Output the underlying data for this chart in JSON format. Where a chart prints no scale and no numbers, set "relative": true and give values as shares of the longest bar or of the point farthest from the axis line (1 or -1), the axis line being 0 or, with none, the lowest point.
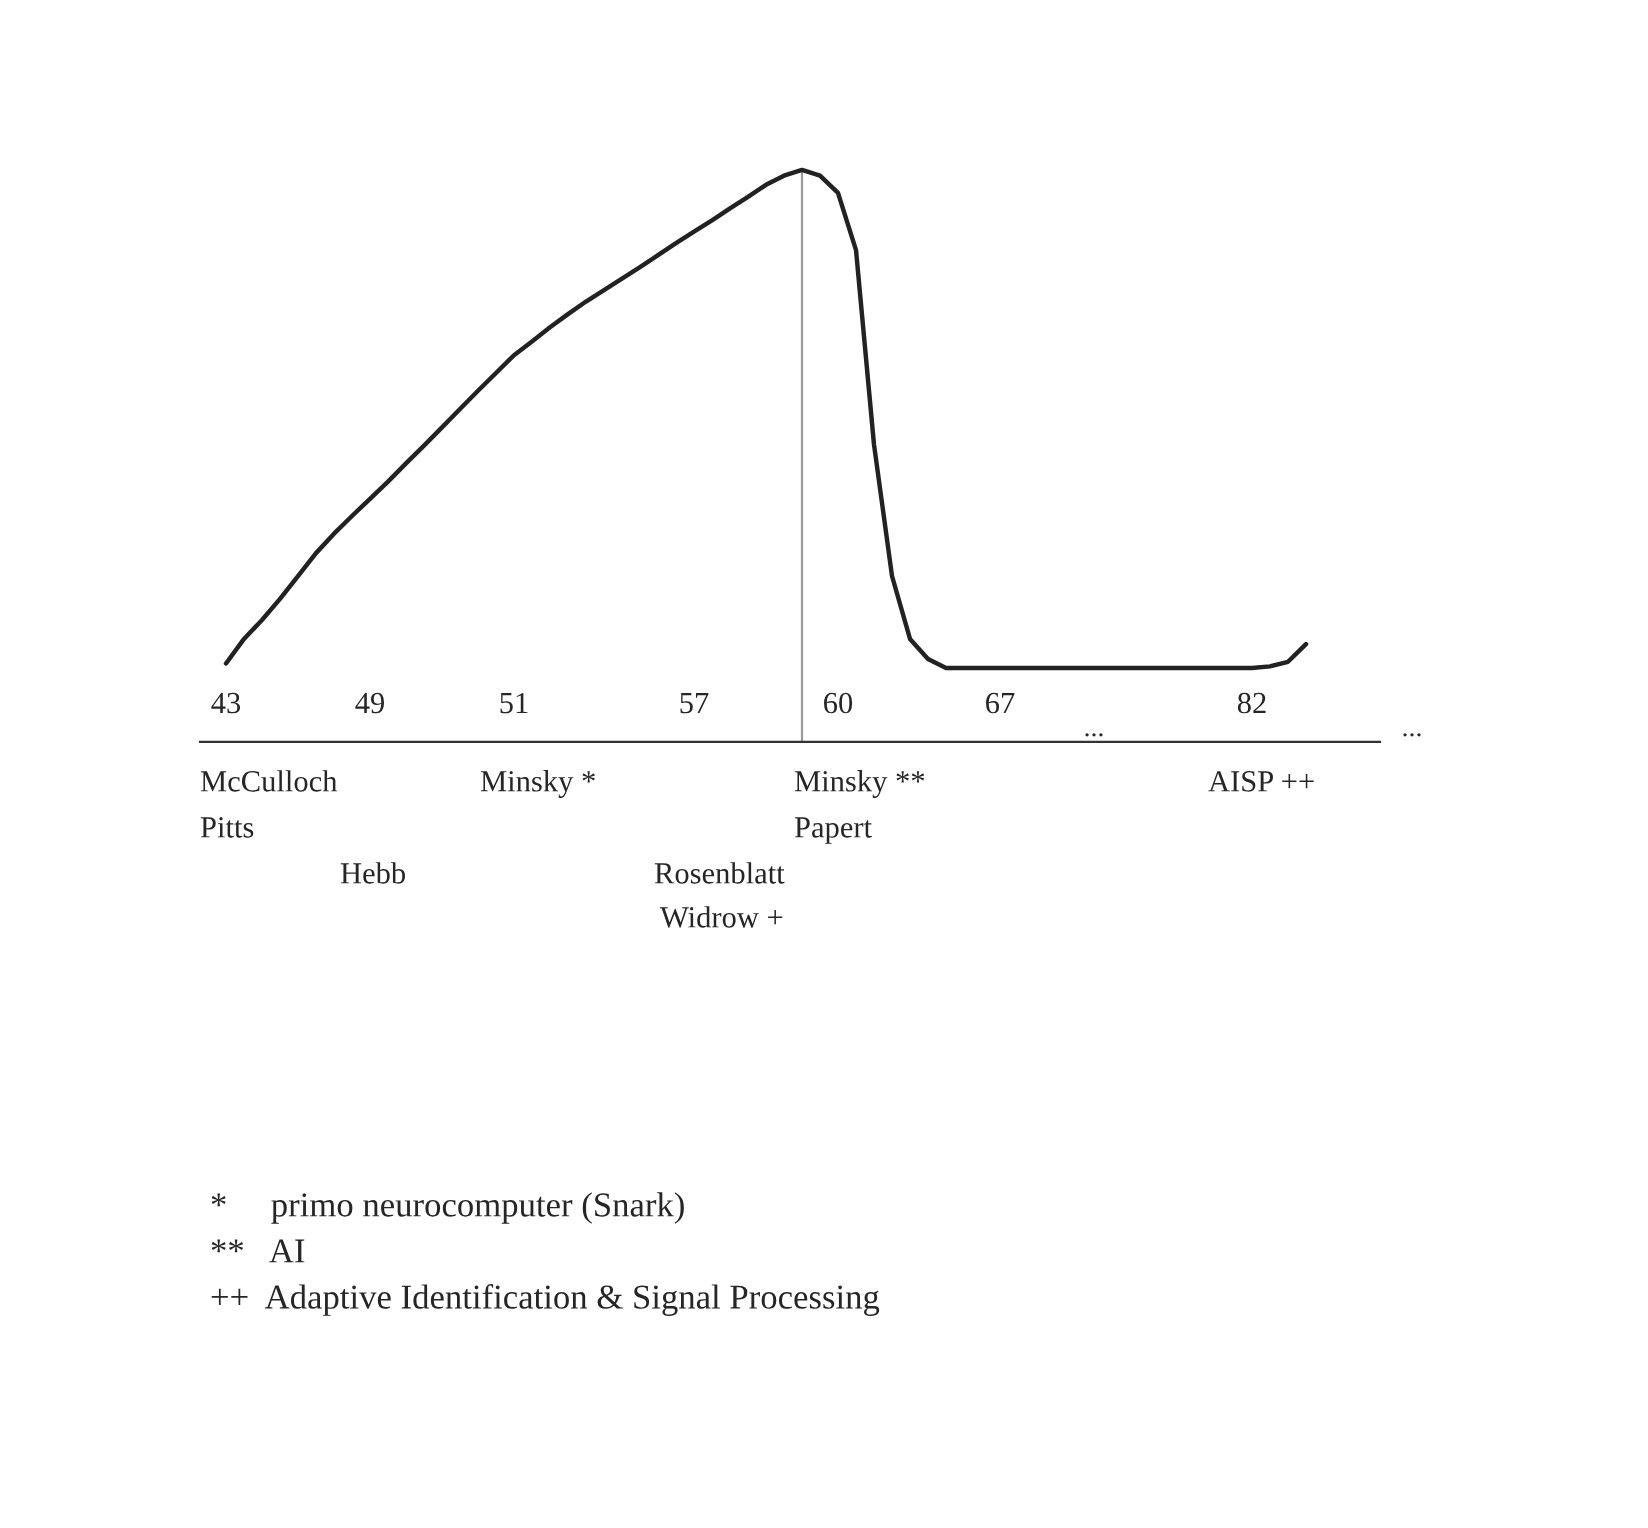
{
  "chart_data": {
    "type": "line",
    "relative": true,
    "categories": [
      "43",
      null,
      null,
      null,
      null,
      null,
      null,
      null,
      "49",
      null,
      null,
      null,
      null,
      null,
      null,
      null,
      "51",
      null,
      null,
      null,
      null,
      null,
      null,
      null,
      null,
      null,
      "57",
      null,
      null,
      null,
      null,
      null,
      null,
      null,
      "60",
      null,
      null,
      null,
      null,
      null,
      null,
      null,
      null,
      "67",
      null,
      null,
      null,
      null,
      null,
      null,
      null,
      null,
      null,
      null,
      null,
      null,
      null,
      "82",
      null,
      null,
      null
    ],
    "series": [
      {
        "color": "#222222",
        "values": [
          0.137,
          0.18,
          0.213,
          0.25,
          0.29,
          0.33,
          0.364,
          0.395,
          0.425,
          0.455,
          0.487,
          0.518,
          0.55,
          0.582,
          0.614,
          0.645,
          0.676,
          0.7,
          0.725,
          0.748,
          0.77,
          0.79,
          0.81,
          0.83,
          0.851,
          0.872,
          0.892,
          0.912,
          0.933,
          0.953,
          0.974,
          0.99,
          1.0,
          0.99,
          0.96,
          0.86,
          0.52,
          0.29,
          0.18,
          0.145,
          0.129,
          0.129,
          0.129,
          0.129,
          0.129,
          0.129,
          0.129,
          0.129,
          0.129,
          0.129,
          0.129,
          0.129,
          0.129,
          0.129,
          0.129,
          0.129,
          0.129,
          0.129,
          0.132,
          0.14,
          0.171
        ]
      }
    ],
    "annotations": [
      "McCulloch",
      "Pitts",
      "Hebb",
      "Minsky *",
      "Rosenblatt",
      "Widrow +",
      "Minsky **",
      "Papert",
      "AISP ++",
      "...",
      "...",
      "*     primo neurocomputer (Snark)",
      "**   AI",
      "++  Adaptive Identification & Signal Processing"
    ]
  }
}
